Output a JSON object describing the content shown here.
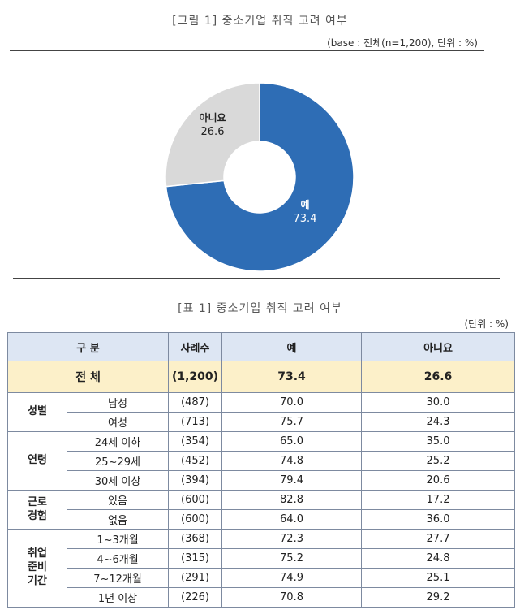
{
  "chart_data": {
    "type": "pie",
    "title": "[그림 1] 중소기업 취직 고려 여부",
    "note": "(base : 전체(n=1,200), 단위 : %)",
    "slices": [
      {
        "label": "예",
        "value": 73.4,
        "color": "#2e6db5"
      },
      {
        "label": "아니요",
        "value": 26.6,
        "color": "#d9d9d9"
      }
    ]
  },
  "table": {
    "title": "[표 1] 중소기업 취직 고려 여부",
    "note": "(단위 : %)",
    "headers": [
      "구  분",
      "사례수",
      "예",
      "아니요"
    ],
    "total": {
      "label": "전  체",
      "n": "(1,200)",
      "yes": "73.4",
      "no": "26.6"
    },
    "groups": [
      {
        "name": "성별",
        "rows": [
          {
            "cat": "남성",
            "n": "(487)",
            "yes": "70.0",
            "no": "30.0"
          },
          {
            "cat": "여성",
            "n": "(713)",
            "yes": "75.7",
            "no": "24.3"
          }
        ]
      },
      {
        "name": "연령",
        "rows": [
          {
            "cat": "24세 이하",
            "n": "(354)",
            "yes": "65.0",
            "no": "35.0"
          },
          {
            "cat": "25~29세",
            "n": "(452)",
            "yes": "74.8",
            "no": "25.2"
          },
          {
            "cat": "30세 이상",
            "n": "(394)",
            "yes": "79.4",
            "no": "20.6"
          }
        ]
      },
      {
        "name": "근로\n경험",
        "rows": [
          {
            "cat": "있음",
            "n": "(600)",
            "yes": "82.8",
            "no": "17.2"
          },
          {
            "cat": "없음",
            "n": "(600)",
            "yes": "64.0",
            "no": "36.0"
          }
        ]
      },
      {
        "name": "취업\n준비\n기간",
        "rows": [
          {
            "cat": "1~3개월",
            "n": "(368)",
            "yes": "72.3",
            "no": "27.7"
          },
          {
            "cat": "4~6개월",
            "n": "(315)",
            "yes": "75.2",
            "no": "24.8"
          },
          {
            "cat": "7~12개월",
            "n": "(291)",
            "yes": "74.9",
            "no": "25.1"
          },
          {
            "cat": "1년 이상",
            "n": "(226)",
            "yes": "70.8",
            "no": "29.2"
          }
        ]
      }
    ]
  }
}
